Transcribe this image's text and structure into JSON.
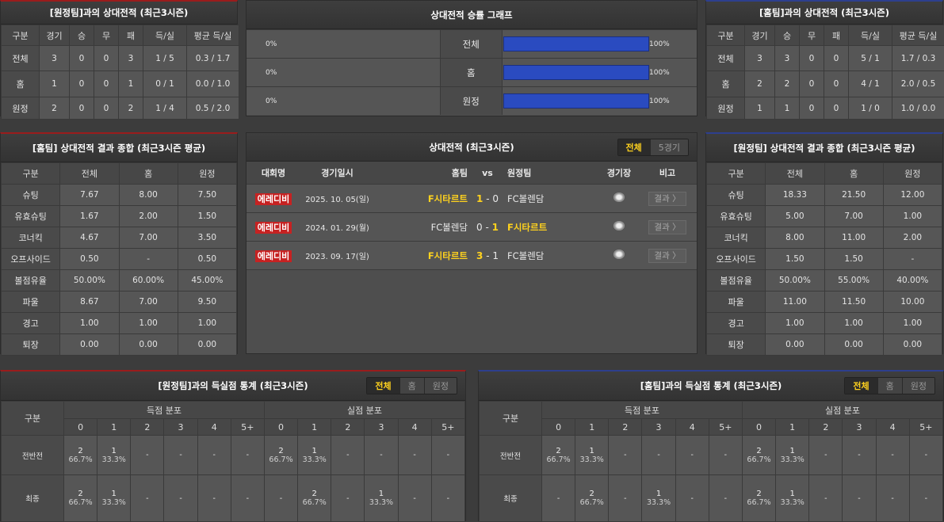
{
  "away_h2h": {
    "title": "[원정팀]과의 상대전적 (최근3시즌)",
    "headers": [
      "구분",
      "경기",
      "승",
      "무",
      "패",
      "득/실",
      "평균 득/실"
    ],
    "rows": [
      [
        "전체",
        "3",
        "0",
        "0",
        "3",
        "1 / 5",
        "0.3 / 1.7"
      ],
      [
        "홈",
        "1",
        "0",
        "0",
        "1",
        "0 / 1",
        "0.0 / 1.0"
      ],
      [
        "원정",
        "2",
        "0",
        "0",
        "2",
        "1 / 4",
        "0.5 / 2.0"
      ]
    ]
  },
  "home_h2h": {
    "title": "[홈팀]과의 상대전적 (최근3시즌)",
    "headers": [
      "구분",
      "경기",
      "승",
      "무",
      "패",
      "득/실",
      "평균 득/실"
    ],
    "rows": [
      [
        "전체",
        "3",
        "3",
        "0",
        "0",
        "5 / 1",
        "1.7 / 0.3"
      ],
      [
        "홈",
        "2",
        "2",
        "0",
        "0",
        "4 / 1",
        "2.0 / 0.5"
      ],
      [
        "원정",
        "1",
        "1",
        "0",
        "0",
        "1 / 0",
        "1.0 / 0.0"
      ]
    ]
  },
  "win_graph": {
    "title": "상대전적 승률 그래프",
    "bar_color": "#2a4bc0",
    "rows": [
      {
        "left": "0%",
        "label": "전체",
        "right": "100%",
        "right_value": 100
      },
      {
        "left": "0%",
        "label": "홈",
        "right": "100%",
        "right_value": 100
      },
      {
        "left": "0%",
        "label": "원정",
        "right": "100%",
        "right_value": 100
      }
    ]
  },
  "home_summary": {
    "title": "[홈팀] 상대전적 결과 종합 (최근3시즌 평균)",
    "headers": [
      "구분",
      "전체",
      "홈",
      "원정"
    ],
    "rows": [
      [
        "슈팅",
        "7.67",
        "8.00",
        "7.50"
      ],
      [
        "유효슈팅",
        "1.67",
        "2.00",
        "1.50"
      ],
      [
        "코너킥",
        "4.67",
        "7.00",
        "3.50"
      ],
      [
        "오프사이드",
        "0.50",
        "-",
        "0.50"
      ],
      [
        "볼점유율",
        "50.00%",
        "60.00%",
        "45.00%"
      ],
      [
        "파울",
        "8.67",
        "7.00",
        "9.50"
      ],
      [
        "경고",
        "1.00",
        "1.00",
        "1.00"
      ],
      [
        "퇴장",
        "0.00",
        "0.00",
        "0.00"
      ]
    ]
  },
  "away_summary": {
    "title": "[원정팀] 상대전적 결과 종합 (최근3시즌 평균)",
    "headers": [
      "구분",
      "전체",
      "홈",
      "원정"
    ],
    "rows": [
      [
        "슈팅",
        "18.33",
        "21.50",
        "12.00"
      ],
      [
        "유효슈팅",
        "5.00",
        "7.00",
        "1.00"
      ],
      [
        "코너킥",
        "8.00",
        "11.00",
        "2.00"
      ],
      [
        "오프사이드",
        "1.50",
        "1.50",
        "-"
      ],
      [
        "볼점유율",
        "50.00%",
        "55.00%",
        "40.00%"
      ],
      [
        "파울",
        "11.00",
        "11.50",
        "10.00"
      ],
      [
        "경고",
        "1.00",
        "1.00",
        "1.00"
      ],
      [
        "퇴장",
        "0.00",
        "0.00",
        "0.00"
      ]
    ]
  },
  "matches": {
    "title": "상대전적 (최근3시즌)",
    "tabs": [
      "전체",
      "5경기"
    ],
    "active_tab": "전체",
    "headers": {
      "comp": "대회명",
      "date": "경기일시",
      "home": "홈팀",
      "vs": "vs",
      "away": "원정팀",
      "stadium": "경기장",
      "note": "비고"
    },
    "rows": [
      {
        "comp": "에레디비",
        "date": "2025. 10. 05(일)",
        "home": "F시타르트",
        "hs": "1",
        "as": "0",
        "away": "FC볼렌담",
        "winner": "home",
        "result": "결과 〉"
      },
      {
        "comp": "에레디비",
        "date": "2024. 01. 29(월)",
        "home": "FC볼렌담",
        "hs": "0",
        "as": "1",
        "away": "F시타르트",
        "winner": "away",
        "result": "결과 〉"
      },
      {
        "comp": "에레디비",
        "date": "2023. 09. 17(일)",
        "home": "F시타르트",
        "hs": "3",
        "as": "1",
        "away": "FC볼렌담",
        "winner": "home",
        "result": "결과 〉"
      }
    ]
  },
  "away_goals": {
    "title": "[원정팀]과의 득실점 통계 (최근3시즌)",
    "tabs": [
      "전체",
      "홈",
      "원정"
    ],
    "active_tab": "전체",
    "label": "구분",
    "scored": "득점 분포",
    "conceded": "실점 분포",
    "cols": [
      "0",
      "1",
      "2",
      "3",
      "4",
      "5+",
      "0",
      "1",
      "2",
      "3",
      "4",
      "5+"
    ],
    "rows": [
      {
        "label": "전반전",
        "cells": [
          [
            "2",
            "66.7%"
          ],
          [
            "1",
            "33.3%"
          ],
          [
            "-"
          ],
          [
            "-"
          ],
          [
            "-"
          ],
          [
            "-"
          ],
          [
            "2",
            "66.7%"
          ],
          [
            "1",
            "33.3%"
          ],
          [
            "-"
          ],
          [
            "-"
          ],
          [
            "-"
          ],
          [
            "-"
          ]
        ]
      },
      {
        "label": "최종",
        "cells": [
          [
            "2",
            "66.7%"
          ],
          [
            "1",
            "33.3%"
          ],
          [
            "-"
          ],
          [
            "-"
          ],
          [
            "-"
          ],
          [
            "-"
          ],
          [
            "-"
          ],
          [
            "2",
            "66.7%"
          ],
          [
            "-"
          ],
          [
            "1",
            "33.3%"
          ],
          [
            "-"
          ],
          [
            "-"
          ]
        ]
      }
    ]
  },
  "home_goals": {
    "title": "[홈팀]과의 득실점 통계 (최근3시즌)",
    "tabs": [
      "전체",
      "홈",
      "원정"
    ],
    "active_tab": "전체",
    "label": "구분",
    "scored": "득점 분포",
    "conceded": "실점 분포",
    "cols": [
      "0",
      "1",
      "2",
      "3",
      "4",
      "5+",
      "0",
      "1",
      "2",
      "3",
      "4",
      "5+"
    ],
    "rows": [
      {
        "label": "전반전",
        "cells": [
          [
            "2",
            "66.7%"
          ],
          [
            "1",
            "33.3%"
          ],
          [
            "-"
          ],
          [
            "-"
          ],
          [
            "-"
          ],
          [
            "-"
          ],
          [
            "2",
            "66.7%"
          ],
          [
            "1",
            "33.3%"
          ],
          [
            "-"
          ],
          [
            "-"
          ],
          [
            "-"
          ],
          [
            "-"
          ]
        ]
      },
      {
        "label": "최종",
        "cells": [
          [
            "-"
          ],
          [
            "2",
            "66.7%"
          ],
          [
            "-"
          ],
          [
            "1",
            "33.3%"
          ],
          [
            "-"
          ],
          [
            "-"
          ],
          [
            "2",
            "66.7%"
          ],
          [
            "1",
            "33.3%"
          ],
          [
            "-"
          ],
          [
            "-"
          ],
          [
            "-"
          ],
          [
            "-"
          ]
        ]
      }
    ]
  }
}
